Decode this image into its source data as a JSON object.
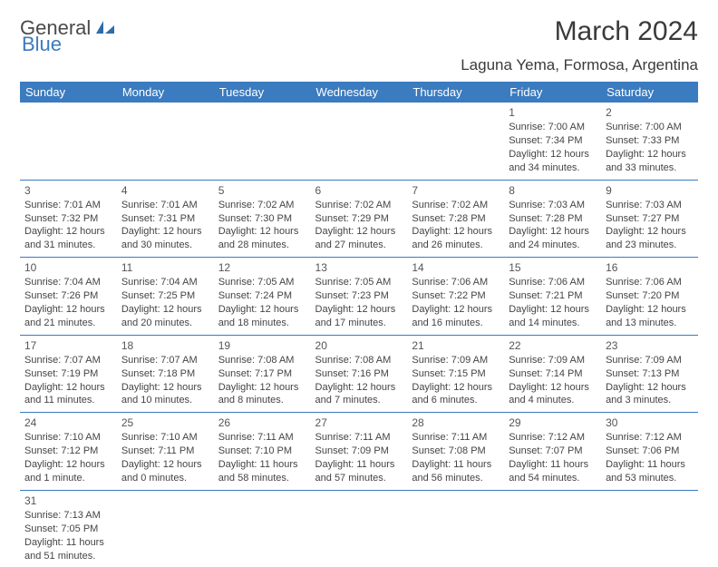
{
  "header": {
    "logo_text_1": "General",
    "logo_text_2": "Blue",
    "title": "March 2024",
    "location": "Laguna Yema, Formosa, Argentina"
  },
  "calendar": {
    "header_bg": "#3b7bbf",
    "header_fg": "#ffffff",
    "border_color": "#3b7bbf",
    "text_color": "#444444",
    "daynum_color": "#555555",
    "font_size_cell": 11,
    "font_size_header": 13,
    "columns": [
      "Sunday",
      "Monday",
      "Tuesday",
      "Wednesday",
      "Thursday",
      "Friday",
      "Saturday"
    ],
    "weeks": [
      [
        null,
        null,
        null,
        null,
        null,
        {
          "n": "1",
          "sr": "7:00 AM",
          "ss": "7:34 PM",
          "dh": "12",
          "dm": "34 minutes"
        },
        {
          "n": "2",
          "sr": "7:00 AM",
          "ss": "7:33 PM",
          "dh": "12",
          "dm": "33 minutes"
        }
      ],
      [
        {
          "n": "3",
          "sr": "7:01 AM",
          "ss": "7:32 PM",
          "dh": "12",
          "dm": "31 minutes"
        },
        {
          "n": "4",
          "sr": "7:01 AM",
          "ss": "7:31 PM",
          "dh": "12",
          "dm": "30 minutes"
        },
        {
          "n": "5",
          "sr": "7:02 AM",
          "ss": "7:30 PM",
          "dh": "12",
          "dm": "28 minutes"
        },
        {
          "n": "6",
          "sr": "7:02 AM",
          "ss": "7:29 PM",
          "dh": "12",
          "dm": "27 minutes"
        },
        {
          "n": "7",
          "sr": "7:02 AM",
          "ss": "7:28 PM",
          "dh": "12",
          "dm": "26 minutes"
        },
        {
          "n": "8",
          "sr": "7:03 AM",
          "ss": "7:28 PM",
          "dh": "12",
          "dm": "24 minutes"
        },
        {
          "n": "9",
          "sr": "7:03 AM",
          "ss": "7:27 PM",
          "dh": "12",
          "dm": "23 minutes"
        }
      ],
      [
        {
          "n": "10",
          "sr": "7:04 AM",
          "ss": "7:26 PM",
          "dh": "12",
          "dm": "21 minutes"
        },
        {
          "n": "11",
          "sr": "7:04 AM",
          "ss": "7:25 PM",
          "dh": "12",
          "dm": "20 minutes"
        },
        {
          "n": "12",
          "sr": "7:05 AM",
          "ss": "7:24 PM",
          "dh": "12",
          "dm": "18 minutes"
        },
        {
          "n": "13",
          "sr": "7:05 AM",
          "ss": "7:23 PM",
          "dh": "12",
          "dm": "17 minutes"
        },
        {
          "n": "14",
          "sr": "7:06 AM",
          "ss": "7:22 PM",
          "dh": "12",
          "dm": "16 minutes"
        },
        {
          "n": "15",
          "sr": "7:06 AM",
          "ss": "7:21 PM",
          "dh": "12",
          "dm": "14 minutes"
        },
        {
          "n": "16",
          "sr": "7:06 AM",
          "ss": "7:20 PM",
          "dh": "12",
          "dm": "13 minutes"
        }
      ],
      [
        {
          "n": "17",
          "sr": "7:07 AM",
          "ss": "7:19 PM",
          "dh": "12",
          "dm": "11 minutes"
        },
        {
          "n": "18",
          "sr": "7:07 AM",
          "ss": "7:18 PM",
          "dh": "12",
          "dm": "10 minutes"
        },
        {
          "n": "19",
          "sr": "7:08 AM",
          "ss": "7:17 PM",
          "dh": "12",
          "dm": "8 minutes"
        },
        {
          "n": "20",
          "sr": "7:08 AM",
          "ss": "7:16 PM",
          "dh": "12",
          "dm": "7 minutes"
        },
        {
          "n": "21",
          "sr": "7:09 AM",
          "ss": "7:15 PM",
          "dh": "12",
          "dm": "6 minutes"
        },
        {
          "n": "22",
          "sr": "7:09 AM",
          "ss": "7:14 PM",
          "dh": "12",
          "dm": "4 minutes"
        },
        {
          "n": "23",
          "sr": "7:09 AM",
          "ss": "7:13 PM",
          "dh": "12",
          "dm": "3 minutes"
        }
      ],
      [
        {
          "n": "24",
          "sr": "7:10 AM",
          "ss": "7:12 PM",
          "dh": "12",
          "dm": "1 minute"
        },
        {
          "n": "25",
          "sr": "7:10 AM",
          "ss": "7:11 PM",
          "dh": "12",
          "dm": "0 minutes"
        },
        {
          "n": "26",
          "sr": "7:11 AM",
          "ss": "7:10 PM",
          "dh": "11",
          "dm": "58 minutes"
        },
        {
          "n": "27",
          "sr": "7:11 AM",
          "ss": "7:09 PM",
          "dh": "11",
          "dm": "57 minutes"
        },
        {
          "n": "28",
          "sr": "7:11 AM",
          "ss": "7:08 PM",
          "dh": "11",
          "dm": "56 minutes"
        },
        {
          "n": "29",
          "sr": "7:12 AM",
          "ss": "7:07 PM",
          "dh": "11",
          "dm": "54 minutes"
        },
        {
          "n": "30",
          "sr": "7:12 AM",
          "ss": "7:06 PM",
          "dh": "11",
          "dm": "53 minutes"
        }
      ],
      [
        {
          "n": "31",
          "sr": "7:13 AM",
          "ss": "7:05 PM",
          "dh": "11",
          "dm": "51 minutes"
        },
        null,
        null,
        null,
        null,
        null,
        null
      ]
    ]
  }
}
